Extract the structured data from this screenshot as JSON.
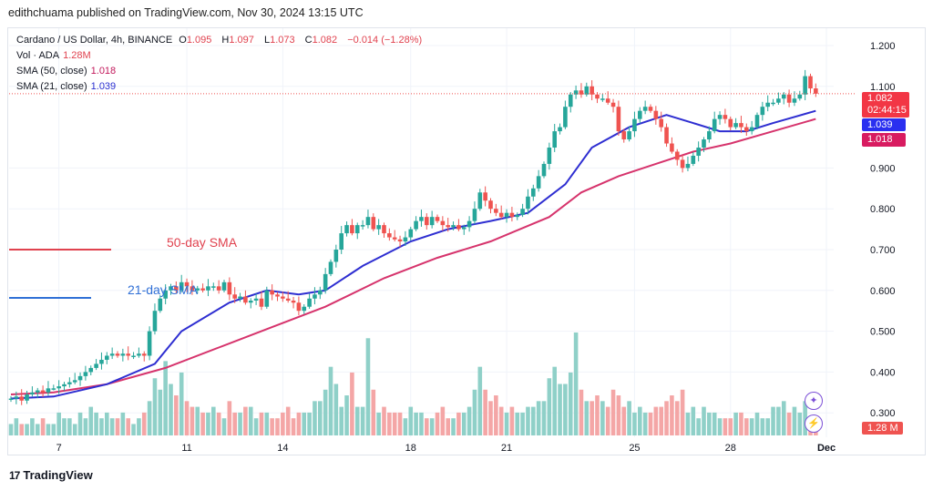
{
  "publisher_line": "edithchuama published on TradingView.com, Nov 30, 2024 13:15 UTC",
  "legend": {
    "symbol": "Cardano / US Dollar, 4h, BINANCE",
    "o_label": "O",
    "o": "1.095",
    "h_label": "H",
    "h": "1.097",
    "l_label": "L",
    "l": "1.073",
    "c_label": "C",
    "c": "1.082",
    "change": "−0.014 (−1.28%)",
    "vol_label": "Vol · ADA",
    "vol": "1.28M",
    "sma50_label": "SMA (50, close)",
    "sma50": "1.018",
    "sma21_label": "SMA (21, close)",
    "sma21": "1.039"
  },
  "price_tags": {
    "last": "1.082",
    "countdown": "02:44:15",
    "sma21": "1.039",
    "sma50": "1.018",
    "volume": "1.28 M"
  },
  "annotations": {
    "sma50": "50-day SMA",
    "sma21": "21-day SMA"
  },
  "footer_logo": "TradingView",
  "colors": {
    "up": "#26a69a",
    "down": "#ef5350",
    "sma21": "#2e2ed1",
    "sma50": "#d6336c",
    "up_vol": "#8fd0c8",
    "down_vol": "#f4a6a6",
    "annotation_red": "#e0424f",
    "annotation_blue": "#2f6fd6",
    "icon_purple": "#7b4fd6"
  },
  "chart_data": {
    "type": "candlestick",
    "ylim": [
      0.25,
      1.25
    ],
    "y_ticks": [
      "1.200",
      "1.100",
      "0.900",
      "0.800",
      "0.700",
      "0.600",
      "0.500",
      "0.400",
      "0.300"
    ],
    "y_tick_values": [
      1.2,
      1.1,
      0.9,
      0.8,
      0.7,
      0.6,
      0.5,
      0.4,
      0.3
    ],
    "x_ticks": [
      "7",
      "11",
      "14",
      "18",
      "21",
      "25",
      "28",
      "Dec"
    ],
    "x_tick_candle_index": [
      9,
      33,
      51,
      75,
      93,
      117,
      135,
      153
    ],
    "grid": true,
    "closes": [
      0.335,
      0.34,
      0.33,
      0.345,
      0.35,
      0.355,
      0.35,
      0.36,
      0.36,
      0.365,
      0.37,
      0.375,
      0.38,
      0.39,
      0.4,
      0.41,
      0.42,
      0.43,
      0.44,
      0.445,
      0.44,
      0.445,
      0.44,
      0.44,
      0.445,
      0.44,
      0.5,
      0.55,
      0.58,
      0.6,
      0.61,
      0.6,
      0.62,
      0.61,
      0.6,
      0.605,
      0.6,
      0.61,
      0.61,
      0.6,
      0.62,
      0.59,
      0.58,
      0.585,
      0.57,
      0.575,
      0.58,
      0.56,
      0.6,
      0.59,
      0.585,
      0.58,
      0.575,
      0.57,
      0.55,
      0.56,
      0.58,
      0.59,
      0.6,
      0.64,
      0.67,
      0.7,
      0.74,
      0.76,
      0.74,
      0.76,
      0.76,
      0.78,
      0.75,
      0.76,
      0.74,
      0.73,
      0.725,
      0.72,
      0.73,
      0.75,
      0.77,
      0.78,
      0.76,
      0.78,
      0.77,
      0.76,
      0.755,
      0.76,
      0.75,
      0.755,
      0.77,
      0.8,
      0.84,
      0.82,
      0.8,
      0.79,
      0.78,
      0.79,
      0.78,
      0.785,
      0.8,
      0.83,
      0.85,
      0.88,
      0.91,
      0.95,
      0.99,
      1.0,
      1.05,
      1.08,
      1.09,
      1.08,
      1.1,
      1.08,
      1.07,
      1.07,
      1.06,
      1.05,
      0.99,
      0.97,
      0.99,
      1.02,
      1.04,
      1.05,
      1.04,
      1.02,
      1.0,
      0.96,
      0.94,
      0.92,
      0.9,
      0.91,
      0.93,
      0.95,
      0.97,
      0.99,
      1.02,
      1.03,
      1.02,
      1.0,
      1.01,
      1.0,
      0.99,
      1.0,
      1.03,
      1.05,
      1.06,
      1.06,
      1.07,
      1.08,
      1.06,
      1.07,
      1.08,
      1.125,
      1.095,
      1.082
    ],
    "volumes_m": [
      2,
      3,
      2,
      2,
      3,
      2,
      3,
      2,
      2,
      4,
      3,
      3,
      2,
      4,
      3,
      5,
      4,
      3,
      4,
      3,
      3,
      4,
      3,
      2,
      3,
      4,
      6,
      10,
      8,
      13,
      9,
      7,
      11,
      6,
      5,
      5,
      4,
      4,
      5,
      4,
      3,
      6,
      4,
      4,
      5,
      5,
      3,
      4,
      4,
      3,
      3,
      4,
      5,
      3,
      4,
      4,
      4,
      6,
      6,
      8,
      12,
      9,
      5,
      7,
      11,
      5,
      5,
      17,
      8,
      4,
      5,
      4,
      4,
      4,
      3,
      5,
      4,
      4,
      3,
      3,
      4,
      5,
      3,
      3,
      4,
      4,
      5,
      8,
      12,
      8,
      6,
      7,
      5,
      4,
      5,
      4,
      4,
      5,
      5,
      6,
      6,
      10,
      12,
      9,
      9,
      11,
      18,
      8,
      6,
      6,
      7,
      6,
      5,
      8,
      7,
      5,
      6,
      4,
      5,
      4,
      4,
      5,
      5,
      6,
      7,
      6,
      8,
      4,
      5,
      3,
      5,
      4,
      4,
      3,
      3,
      3,
      4,
      4,
      3,
      3,
      4,
      3,
      3,
      5,
      5,
      6,
      4,
      5,
      4,
      6,
      3,
      1.28
    ],
    "sma21": [
      [
        0,
        0.335
      ],
      [
        8,
        0.34
      ],
      [
        18,
        0.37
      ],
      [
        27,
        0.42
      ],
      [
        32,
        0.5
      ],
      [
        41,
        0.57
      ],
      [
        48,
        0.6
      ],
      [
        54,
        0.59
      ],
      [
        59,
        0.6
      ],
      [
        66,
        0.66
      ],
      [
        75,
        0.72
      ],
      [
        82,
        0.75
      ],
      [
        90,
        0.77
      ],
      [
        97,
        0.79
      ],
      [
        104,
        0.86
      ],
      [
        109,
        0.95
      ],
      [
        116,
        1.0
      ],
      [
        123,
        1.03
      ],
      [
        128,
        1.01
      ],
      [
        133,
        0.99
      ],
      [
        138,
        0.99
      ],
      [
        143,
        1.01
      ],
      [
        151,
        1.04
      ]
    ],
    "sma50": [
      [
        0,
        0.345
      ],
      [
        8,
        0.35
      ],
      [
        18,
        0.37
      ],
      [
        29,
        0.41
      ],
      [
        39,
        0.46
      ],
      [
        49,
        0.51
      ],
      [
        59,
        0.56
      ],
      [
        70,
        0.63
      ],
      [
        80,
        0.68
      ],
      [
        90,
        0.72
      ],
      [
        101,
        0.78
      ],
      [
        107,
        0.84
      ],
      [
        114,
        0.88
      ],
      [
        121,
        0.91
      ],
      [
        128,
        0.94
      ],
      [
        135,
        0.96
      ],
      [
        143,
        0.99
      ],
      [
        151,
        1.02
      ]
    ]
  }
}
